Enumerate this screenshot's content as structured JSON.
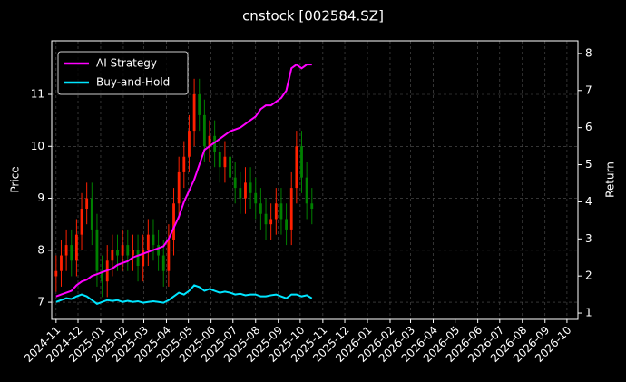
{
  "chart_data": {
    "type": "candlestick",
    "title": "cnstock [002584.SZ]",
    "y_label": "Price",
    "y2_label": "Return",
    "x": [
      0,
      7,
      14,
      21,
      28,
      35,
      42,
      49,
      56,
      63,
      70,
      77,
      84,
      91,
      98,
      105,
      112,
      119,
      126,
      133,
      140,
      147,
      154,
      161,
      168,
      175,
      182,
      189,
      196,
      203,
      210,
      217,
      224,
      231,
      238,
      245,
      252,
      259,
      266,
      273,
      280,
      287,
      294,
      301,
      308,
      315,
      322,
      329,
      336,
      343,
      350
    ],
    "open": [
      7.5,
      7.6,
      7.9,
      8.1,
      7.8,
      8.3,
      8.8,
      9.0,
      8.4,
      7.6,
      7.4,
      7.8,
      8.0,
      7.9,
      8.1,
      7.9,
      8.0,
      7.7,
      8.0,
      8.3,
      8.1,
      7.9,
      7.6,
      8.2,
      8.9,
      9.5,
      9.8,
      10.3,
      11.0,
      10.6,
      10.0,
      10.2,
      9.9,
      9.6,
      9.8,
      9.4,
      9.2,
      9.0,
      9.3,
      9.1,
      8.9,
      8.7,
      8.5,
      8.6,
      8.9,
      8.6,
      8.4,
      9.2,
      10.0,
      9.4,
      8.9
    ],
    "high": [
      7.9,
      8.2,
      8.4,
      8.4,
      8.6,
      9.1,
      9.3,
      9.3,
      8.7,
      7.9,
      8.1,
      8.3,
      8.3,
      8.4,
      8.4,
      8.3,
      8.3,
      8.3,
      8.6,
      8.6,
      8.4,
      8.2,
      8.5,
      9.2,
      9.8,
      10.1,
      10.6,
      11.3,
      11.3,
      10.9,
      10.5,
      10.5,
      10.2,
      10.1,
      10.1,
      9.7,
      9.5,
      9.6,
      9.6,
      9.4,
      9.2,
      9.0,
      8.9,
      9.2,
      9.2,
      8.9,
      9.5,
      10.3,
      10.3,
      9.7,
      9.2
    ],
    "low": [
      7.2,
      7.3,
      7.6,
      7.5,
      7.5,
      8.0,
      8.5,
      8.1,
      7.3,
      7.1,
      7.1,
      7.5,
      7.6,
      7.6,
      7.6,
      7.6,
      7.4,
      7.4,
      7.7,
      7.8,
      7.6,
      7.3,
      7.3,
      7.9,
      8.6,
      9.2,
      9.5,
      10.0,
      10.3,
      9.7,
      9.7,
      9.6,
      9.3,
      9.3,
      9.1,
      8.9,
      8.7,
      8.7,
      8.8,
      8.6,
      8.4,
      8.2,
      8.2,
      8.3,
      8.3,
      8.1,
      8.1,
      8.9,
      9.1,
      8.6,
      8.5
    ],
    "close": [
      7.6,
      7.9,
      8.1,
      7.8,
      8.3,
      8.8,
      9.0,
      8.4,
      7.6,
      7.4,
      7.8,
      8.0,
      7.9,
      8.1,
      7.9,
      8.0,
      7.7,
      8.0,
      8.3,
      8.1,
      7.9,
      7.6,
      8.2,
      8.9,
      9.5,
      9.8,
      10.3,
      11.0,
      10.6,
      10.0,
      10.2,
      9.9,
      9.6,
      9.8,
      9.4,
      9.2,
      9.0,
      9.3,
      9.1,
      8.9,
      8.7,
      8.5,
      8.6,
      8.9,
      8.6,
      8.4,
      9.2,
      10.0,
      9.4,
      8.9,
      8.8
    ],
    "up_color": "#ff2000",
    "down_color": "#008000",
    "series": [
      {
        "name": "AI Strategy",
        "color": "#ff00ff",
        "axis": "y2",
        "values": [
          1.45,
          1.5,
          1.55,
          1.6,
          1.75,
          1.85,
          1.9,
          2.0,
          2.05,
          2.1,
          2.15,
          2.2,
          2.3,
          2.35,
          2.4,
          2.5,
          2.55,
          2.6,
          2.65,
          2.7,
          2.75,
          2.8,
          3.0,
          3.3,
          3.6,
          4.0,
          4.3,
          4.6,
          5.0,
          5.4,
          5.5,
          5.6,
          5.7,
          5.8,
          5.9,
          5.95,
          6.0,
          6.1,
          6.2,
          6.3,
          6.5,
          6.6,
          6.6,
          6.7,
          6.8,
          7.0,
          7.6,
          7.7,
          7.6,
          7.7,
          7.7
        ]
      },
      {
        "name": "Buy-and-Hold",
        "color": "#00e5ff",
        "axis": "y2",
        "values": [
          1.3,
          1.35,
          1.4,
          1.38,
          1.45,
          1.5,
          1.45,
          1.35,
          1.25,
          1.3,
          1.35,
          1.33,
          1.35,
          1.3,
          1.33,
          1.3,
          1.32,
          1.28,
          1.3,
          1.32,
          1.3,
          1.28,
          1.35,
          1.45,
          1.55,
          1.5,
          1.6,
          1.75,
          1.7,
          1.6,
          1.65,
          1.6,
          1.55,
          1.58,
          1.55,
          1.5,
          1.52,
          1.48,
          1.5,
          1.5,
          1.45,
          1.45,
          1.48,
          1.5,
          1.45,
          1.4,
          1.5,
          1.5,
          1.45,
          1.48,
          1.4
        ]
      }
    ],
    "xlim": [
      -6,
      714
    ],
    "xticks": [
      {
        "value": 0,
        "label": "2024-11"
      },
      {
        "value": 30,
        "label": "2024-12"
      },
      {
        "value": 61,
        "label": "2025-01"
      },
      {
        "value": 92,
        "label": "2025-02"
      },
      {
        "value": 120,
        "label": "2025-03"
      },
      {
        "value": 151,
        "label": "2025-04"
      },
      {
        "value": 181,
        "label": "2025-05"
      },
      {
        "value": 212,
        "label": "2025-06"
      },
      {
        "value": 242,
        "label": "2025-07"
      },
      {
        "value": 273,
        "label": "2025-08"
      },
      {
        "value": 304,
        "label": "2025-09"
      },
      {
        "value": 334,
        "label": "2025-10"
      },
      {
        "value": 365,
        "label": "2025-11"
      },
      {
        "value": 395,
        "label": "2025-12"
      },
      {
        "value": 426,
        "label": "2026-01"
      },
      {
        "value": 457,
        "label": "2026-02"
      },
      {
        "value": 485,
        "label": "2026-03"
      },
      {
        "value": 516,
        "label": "2026-04"
      },
      {
        "value": 546,
        "label": "2026-05"
      },
      {
        "value": 577,
        "label": "2026-06"
      },
      {
        "value": 607,
        "label": "2026-07"
      },
      {
        "value": 638,
        "label": "2026-08"
      },
      {
        "value": 669,
        "label": "2026-09"
      },
      {
        "value": 699,
        "label": "2026-10"
      }
    ],
    "ylim": [
      6.67,
      12.03
    ],
    "yticks": [
      7,
      8,
      9,
      10,
      11
    ],
    "y2lim": [
      0.83,
      8.34
    ],
    "y2ticks": [
      1,
      2,
      3,
      4,
      5,
      6,
      7,
      8
    ],
    "grid": true,
    "legend": "upper left"
  }
}
